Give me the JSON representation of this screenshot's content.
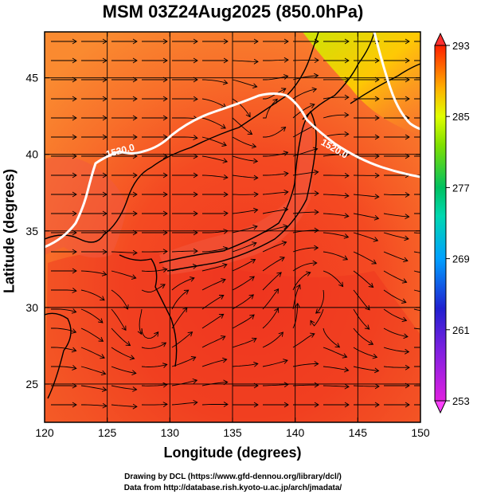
{
  "chart_data": {
    "type": "heatmap",
    "title": "MSM 03Z24Aug2025 (850.0hPa)",
    "xlabel": "Longitude (degrees)",
    "ylabel": "Latitude  (degrees)",
    "xlim": [
      120,
      150
    ],
    "ylim": [
      22.5,
      48
    ],
    "xticks": [
      120,
      125,
      130,
      135,
      140,
      145,
      150
    ],
    "yticks": [
      25,
      30,
      35,
      40,
      45
    ],
    "grid": true,
    "colorbar": {
      "min": 253,
      "max": 293,
      "ticks": [
        253,
        261,
        269,
        277,
        285,
        293
      ],
      "colors": [
        "#e020e0",
        "#2020d0",
        "#00c8ff",
        "#00c060",
        "#c8ff00",
        "#ffff00",
        "#ff8000",
        "#ff0000"
      ]
    },
    "contours": [
      {
        "label": "1520.0",
        "value": 1520.0
      },
      {
        "label": "1520.0",
        "value": 1520.0
      }
    ]
  },
  "credits": {
    "line1": "Drawing by DCL (https://www.gfd-dennou.org/library/dcl/)",
    "line2": "Data from http://database.rish.kyoto-u.ac.jp/arch/jmadata/"
  }
}
